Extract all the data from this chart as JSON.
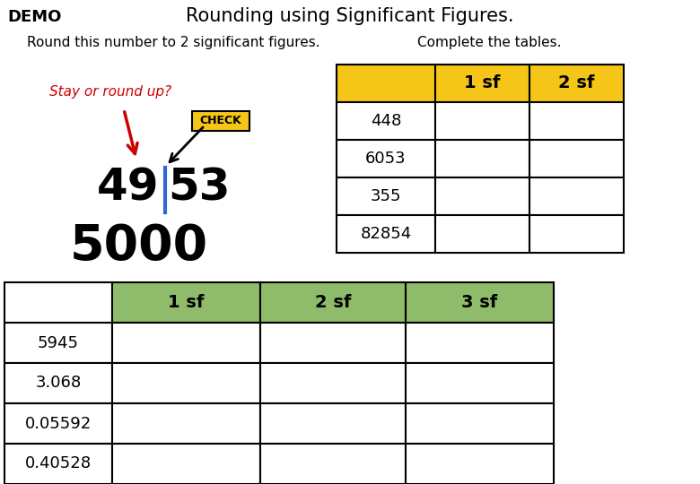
{
  "title": "Rounding using Significant Figures.",
  "demo_label": "DEMO",
  "subtitle_left": "Round this number to 2 significant figures.",
  "subtitle_right": "Complete the tables.",
  "stay_or_round": "Stay or round up?",
  "check_label": "CHECK",
  "top_table_header": [
    "",
    "1 sf",
    "2 sf"
  ],
  "top_table_rows": [
    "448",
    "6053",
    "355",
    "82854"
  ],
  "bottom_table_header": [
    "",
    "1 sf",
    "2 sf",
    "3 sf"
  ],
  "bottom_table_rows": [
    "5945",
    "3.068",
    "0.05592",
    "0.40528"
  ],
  "gold_color": "#F5C518",
  "green_color": "#8FBC6A",
  "bg_color": "#FFFFFF",
  "title_fontsize": 15,
  "demo_fontsize": 13,
  "number_fontsize": 36,
  "result_fontsize": 40,
  "table_fontsize": 13,
  "red_color": "#CC0000",
  "blue_color": "#3366CC",
  "black_color": "#000000"
}
